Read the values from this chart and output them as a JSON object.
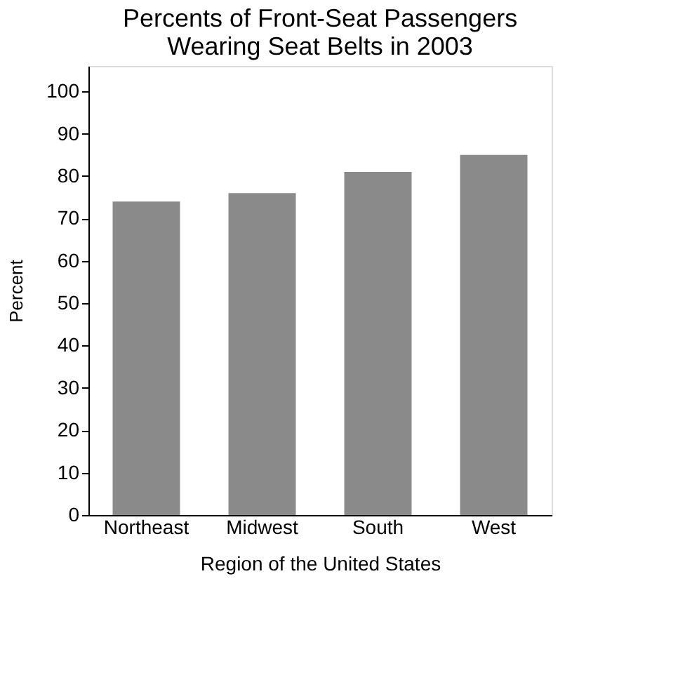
{
  "chart_data": {
    "type": "bar",
    "title": [
      "Percents of Front-Seat Passengers",
      "Wearing Seat Belts in 2003"
    ],
    "categories": [
      "Northeast",
      "Midwest",
      "South",
      "West"
    ],
    "values": [
      74,
      76,
      81,
      85
    ],
    "color": "#8a8a8a",
    "xlabel": "Region of the United States",
    "ylabel": "Percent",
    "ylim": [
      0,
      106
    ],
    "yticks": [
      0,
      10,
      20,
      30,
      40,
      50,
      60,
      70,
      80,
      90,
      100
    ],
    "grid": false
  }
}
